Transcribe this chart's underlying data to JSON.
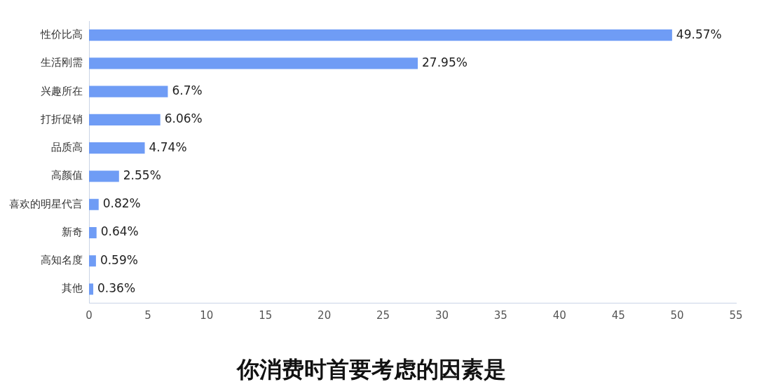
{
  "chart_data": {
    "type": "bar",
    "orientation": "horizontal",
    "title": "你消费时首要考虑的因素是",
    "categories": [
      "性价比高",
      "生活刚需",
      "兴趣所在",
      "打折促销",
      "品质高",
      "高颜值",
      "喜欢的明星代言",
      "新奇",
      "高知名度",
      "其他"
    ],
    "values": [
      49.57,
      27.95,
      6.7,
      6.06,
      4.74,
      2.55,
      0.82,
      0.64,
      0.59,
      0.36
    ],
    "value_labels": [
      "49.57%",
      "27.95%",
      "6.7%",
      "6.06%",
      "4.74%",
      "2.55%",
      "0.82%",
      "0.64%",
      "0.59%",
      "0.36%"
    ],
    "color": "#6f9cf5",
    "xlim": [
      0,
      55
    ],
    "xticks": [
      0,
      5,
      10,
      15,
      20,
      25,
      30,
      35,
      40,
      45,
      50,
      55
    ],
    "grid": false,
    "legend": false
  }
}
